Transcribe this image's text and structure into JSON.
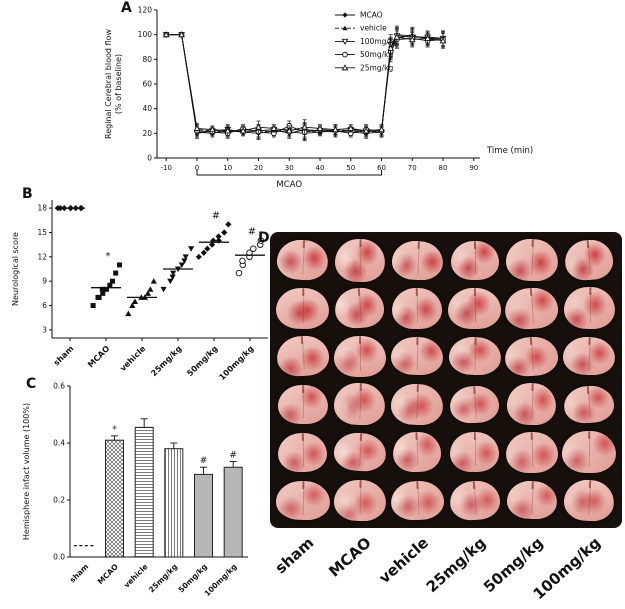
{
  "figure": {
    "panel_a_label": "A",
    "panel_b_label": "B",
    "panel_c_label": "C",
    "panel_d_label": "D"
  },
  "chart_data": [
    {
      "id": "panel-A",
      "type": "line",
      "title": "",
      "xlabel": "Time (min)",
      "ylabel_lines": [
        "Reginal Cerebral blood flow",
        "(% of baseline)"
      ],
      "xlim": [
        -10,
        90
      ],
      "ylim": [
        0,
        120
      ],
      "xticks": [
        -10,
        0,
        10,
        20,
        30,
        40,
        50,
        60,
        70,
        80,
        90
      ],
      "yticks": [
        0,
        20,
        40,
        60,
        80,
        100,
        120
      ],
      "grid": false,
      "legend_position": "upper-right-inside",
      "bracket": {
        "from": 0,
        "to": 60,
        "label": "MCAO"
      },
      "x": [
        -10,
        -5,
        0,
        5,
        10,
        15,
        20,
        25,
        30,
        35,
        40,
        45,
        50,
        55,
        60,
        63,
        65,
        70,
        75,
        80
      ],
      "errors": [
        0,
        0,
        4,
        3,
        4,
        3,
        5,
        3,
        4,
        6,
        3,
        4,
        3,
        4,
        4,
        8,
        7,
        6,
        5,
        6
      ],
      "series": [
        {
          "name": "MCAO",
          "marker": "diamond",
          "dash": "",
          "values": [
            100,
            100,
            21,
            20,
            22,
            21,
            20,
            22,
            21,
            20,
            21,
            22,
            21,
            20,
            21,
            90,
            100,
            99,
            97,
            97
          ]
        },
        {
          "name": "vehicle",
          "marker": "triangle-up",
          "dash": "4 2",
          "values": [
            100,
            100,
            23,
            22,
            21,
            23,
            22,
            21,
            24,
            22,
            21,
            23,
            22,
            21,
            22,
            88,
            97,
            100,
            96,
            96
          ]
        },
        {
          "name": "100mg/kg",
          "marker": "triangle-down-open",
          "dash": "",
          "values": [
            100,
            100,
            20,
            22,
            23,
            21,
            22,
            23,
            20,
            23,
            22,
            21,
            23,
            22,
            21,
            92,
            99,
            98,
            98,
            97
          ]
        },
        {
          "name": "50mg/kg",
          "marker": "circle-open",
          "dash": "",
          "values": [
            100,
            100,
            22,
            21,
            20,
            24,
            21,
            20,
            26,
            21,
            23,
            22,
            20,
            23,
            22,
            86,
            96,
            97,
            95,
            96
          ]
        },
        {
          "name": "25mg/kg",
          "marker": "triangle-up-open",
          "dash": "",
          "values": [
            100,
            100,
            24,
            23,
            22,
            22,
            25,
            24,
            22,
            25,
            24,
            23,
            24,
            22,
            23,
            89,
            98,
            96,
            97,
            95
          ]
        }
      ]
    },
    {
      "id": "panel-B",
      "type": "scatter",
      "title": "",
      "xlabel": "",
      "ylabel": "Neurological score",
      "ylim": [
        2,
        19
      ],
      "yticks": [
        3,
        6,
        9,
        12,
        15,
        18
      ],
      "categories": [
        "sham",
        "MCAO",
        "vehicle",
        "25mg/kg",
        "50mg/kg",
        "100mg/kg"
      ],
      "groups": [
        {
          "name": "sham",
          "marker": "diamond",
          "values": [
            18,
            18,
            18,
            18,
            18,
            18,
            18,
            18
          ],
          "mean": 18,
          "annotation": ""
        },
        {
          "name": "MCAO",
          "marker": "square",
          "values": [
            6,
            7,
            7,
            7.5,
            8,
            8,
            8.5,
            9,
            10,
            11
          ],
          "mean": 8.2,
          "annotation": "*"
        },
        {
          "name": "vehicle",
          "marker": "triangle-up",
          "values": [
            5,
            6,
            6.5,
            7,
            7,
            7.5,
            8,
            9
          ],
          "mean": 7,
          "annotation": ""
        },
        {
          "name": "25mg/kg",
          "marker": "triangle-down",
          "values": [
            8,
            9,
            9.5,
            10,
            10.5,
            11,
            11.5,
            12,
            13
          ],
          "mean": 10.5,
          "annotation": ""
        },
        {
          "name": "50mg/kg",
          "marker": "diamond",
          "values": [
            12,
            12.5,
            13,
            13.5,
            14,
            14,
            14.5,
            15,
            16
          ],
          "mean": 13.8,
          "annotation": "#"
        },
        {
          "name": "100mg/kg",
          "marker": "circle-open",
          "values": [
            10,
            11,
            11.5,
            12,
            12.5,
            13,
            13.5,
            14
          ],
          "mean": 12.2,
          "annotation": "#"
        }
      ]
    },
    {
      "id": "panel-C",
      "type": "bar",
      "title": "",
      "xlabel": "",
      "ylabel": "Hemisphere infact volume (100%)",
      "ylim": [
        0,
        0.6
      ],
      "yticks": [
        0,
        0.2,
        0.4,
        0.6
      ],
      "categories": [
        "sham",
        "MCAO",
        "vehicle",
        "25mg/kg",
        "50mg/kg",
        "100mg/kg"
      ],
      "values": [
        0.04,
        0.41,
        0.455,
        0.38,
        0.29,
        0.315
      ],
      "errors": [
        0,
        0.015,
        0.03,
        0.02,
        0.025,
        0.02
      ],
      "annotations": [
        "",
        "*",
        "",
        "",
        "#",
        "#"
      ],
      "styles": [
        "dashed-line",
        "crosshatch",
        "hlines",
        "vlines",
        "solid-gray",
        "solid-gray"
      ]
    }
  ],
  "panel_d": {
    "rows": 6,
    "columns": [
      "sham",
      "MCAO",
      "vehicle",
      "25mg/kg",
      "50mg/kg",
      "100mg/kg"
    ],
    "background": "#17100c",
    "infarct_severity": [
      0.05,
      0.5,
      0.45,
      0.32,
      0.22,
      0.25
    ]
  }
}
